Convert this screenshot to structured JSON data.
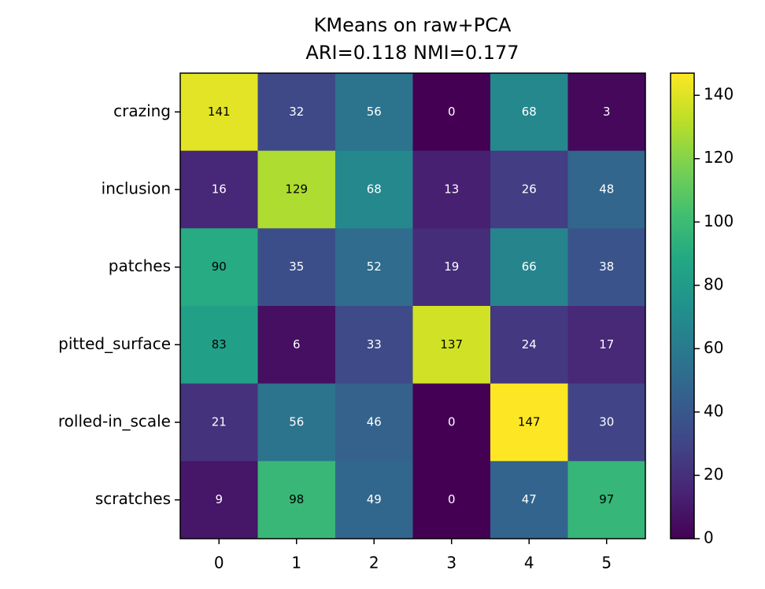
{
  "chart_data": {
    "type": "heatmap",
    "title": "KMeans on raw+PCA",
    "subtitle": "ARI=0.118  NMI=0.177",
    "rows": [
      "crazing",
      "inclusion",
      "patches",
      "pitted_surface",
      "rolled-in_scale",
      "scratches"
    ],
    "columns": [
      0,
      1,
      2,
      3,
      4,
      5
    ],
    "values": [
      [
        141,
        32,
        56,
        0,
        68,
        3
      ],
      [
        16,
        129,
        68,
        13,
        26,
        48
      ],
      [
        90,
        35,
        52,
        19,
        66,
        38
      ],
      [
        83,
        6,
        33,
        137,
        24,
        17
      ],
      [
        21,
        56,
        46,
        0,
        147,
        30
      ],
      [
        9,
        98,
        49,
        0,
        47,
        97
      ]
    ],
    "colormap": "viridis",
    "clim": [
      0,
      147
    ],
    "cticks": [
      0,
      20,
      40,
      60,
      80,
      100,
      120,
      140
    ]
  }
}
